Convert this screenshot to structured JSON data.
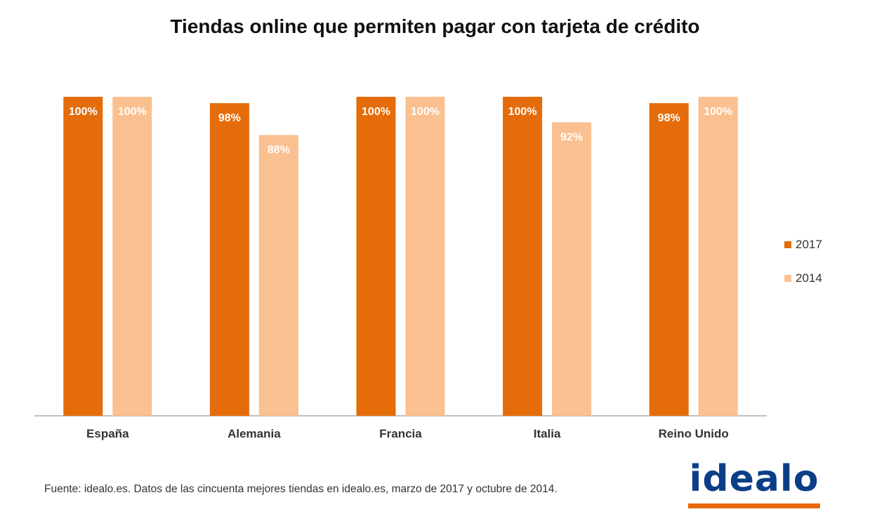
{
  "title": "Tiendas online que permiten pagar con tarjeta de crédito",
  "source": "Fuente: idealo.es. Datos de las cincuenta mejores tiendas en idealo.es, marzo de 2017 y octubre de 2014.",
  "logo_text": "idealo",
  "colors": {
    "series_2017": "#e46c0a",
    "series_2014": "#fac090",
    "logo_blue": "#0b3e87",
    "logo_orange": "#e8690a"
  },
  "chart_data": {
    "type": "bar",
    "title": "Tiendas online que permiten pagar con tarjeta de crédito",
    "categories": [
      "España",
      "Alemania",
      "Francia",
      "Italia",
      "Reino Unido"
    ],
    "series": [
      {
        "name": "2017",
        "values": [
          100,
          98,
          100,
          100,
          98
        ],
        "labels": [
          "100%",
          "98%",
          "100%",
          "100%",
          "98%"
        ]
      },
      {
        "name": "2014",
        "values": [
          100,
          88,
          100,
          92,
          100
        ],
        "labels": [
          "100%",
          "88%",
          "100%",
          "92%",
          "100%"
        ]
      }
    ],
    "ylim": [
      0,
      100
    ],
    "grid": false,
    "legend": "right"
  }
}
